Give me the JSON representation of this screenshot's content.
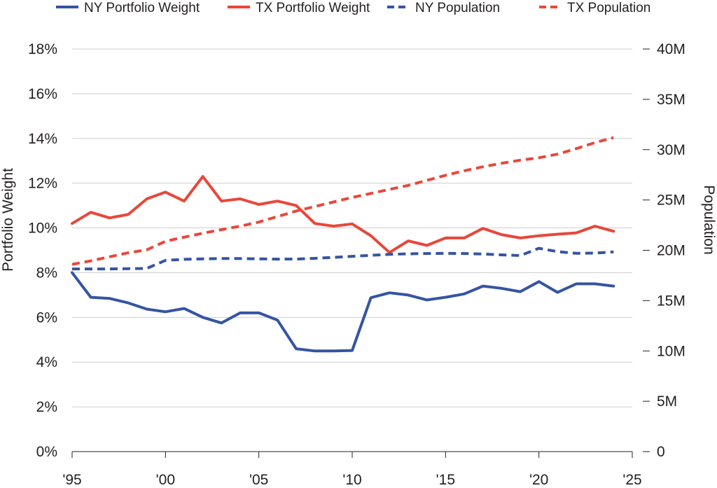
{
  "colors": {
    "ny": "#3554a3",
    "tx": "#e8473a"
  },
  "chart_data": {
    "type": "line",
    "legend_position": "top",
    "grid": true,
    "xlabel": "",
    "ylabel_left": "Portfolio Weight",
    "ylabel_right": "Population",
    "xlim": [
      1995,
      2025
    ],
    "x_ticks": [
      1995,
      2000,
      2005,
      2010,
      2015,
      2020,
      2025
    ],
    "x_tick_labels": [
      "'95",
      "'00",
      "'05",
      "'10",
      "'15",
      "'20",
      "'25"
    ],
    "ylim_left": [
      0,
      18
    ],
    "y_left_ticks": [
      0,
      2,
      4,
      6,
      8,
      10,
      12,
      14,
      16,
      18
    ],
    "y_left_tick_labels": [
      "0%",
      "2%",
      "4%",
      "6%",
      "8%",
      "10%",
      "12%",
      "14%",
      "16%",
      "18%"
    ],
    "ylim_right": [
      0,
      40
    ],
    "y_right_ticks": [
      0,
      5,
      10,
      15,
      20,
      25,
      30,
      35,
      40
    ],
    "y_right_tick_labels": [
      "0",
      "5M",
      "10M",
      "15M",
      "20M",
      "25M",
      "30M",
      "35M",
      "40M"
    ],
    "series": [
      {
        "name": "NY Portfolio Weight",
        "axis": "left",
        "style": "solid",
        "color": "#3554a3",
        "x": [
          1995,
          1996,
          1997,
          1998,
          1999,
          2000,
          2001,
          2002,
          2003,
          2004,
          2005,
          2006,
          2007,
          2008,
          2009,
          2010,
          2011,
          2012,
          2013,
          2014,
          2015,
          2016,
          2017,
          2018,
          2019,
          2020,
          2021,
          2022,
          2023,
          2024
        ],
        "values": [
          8.0,
          6.9,
          6.85,
          6.65,
          6.37,
          6.25,
          6.4,
          6.0,
          5.75,
          6.2,
          6.2,
          5.88,
          4.6,
          4.5,
          4.5,
          4.52,
          6.88,
          7.1,
          7.0,
          6.78,
          6.9,
          7.05,
          7.4,
          7.3,
          7.15,
          7.6,
          7.12,
          7.5,
          7.5,
          7.4
        ]
      },
      {
        "name": "TX Portfolio Weight",
        "axis": "left",
        "style": "solid",
        "color": "#e8473a",
        "x": [
          1995,
          1996,
          1997,
          1998,
          1999,
          2000,
          2001,
          2002,
          2003,
          2004,
          2005,
          2006,
          2007,
          2008,
          2009,
          2010,
          2011,
          2012,
          2013,
          2014,
          2015,
          2016,
          2017,
          2018,
          2019,
          2020,
          2021,
          2022,
          2023,
          2024
        ],
        "values": [
          10.2,
          10.7,
          10.45,
          10.6,
          11.3,
          11.6,
          11.2,
          12.3,
          11.2,
          11.3,
          11.05,
          11.2,
          11.0,
          10.2,
          10.08,
          10.18,
          9.65,
          8.9,
          9.42,
          9.22,
          9.55,
          9.55,
          9.98,
          9.7,
          9.55,
          9.65,
          9.72,
          9.78,
          10.08,
          9.85
        ]
      },
      {
        "name": "NY Population",
        "axis": "right",
        "style": "dashed",
        "color": "#3554a3",
        "x": [
          1995,
          1996,
          1997,
          1998,
          1999,
          2000,
          2001,
          2002,
          2003,
          2004,
          2005,
          2006,
          2007,
          2008,
          2009,
          2010,
          2011,
          2012,
          2013,
          2014,
          2015,
          2016,
          2017,
          2018,
          2019,
          2020,
          2021,
          2022,
          2023,
          2024
        ],
        "values": [
          18.15,
          18.15,
          18.15,
          18.18,
          18.2,
          19.0,
          19.1,
          19.15,
          19.18,
          19.18,
          19.15,
          19.12,
          19.13,
          19.2,
          19.3,
          19.4,
          19.5,
          19.6,
          19.65,
          19.68,
          19.7,
          19.68,
          19.63,
          19.55,
          19.48,
          20.2,
          19.87,
          19.7,
          19.72,
          19.85
        ]
      },
      {
        "name": "TX Population",
        "axis": "right",
        "style": "dashed",
        "color": "#e8473a",
        "x": [
          1995,
          1996,
          1997,
          1998,
          1999,
          2000,
          2001,
          2002,
          2003,
          2004,
          2005,
          2006,
          2007,
          2008,
          2009,
          2010,
          2011,
          2012,
          2013,
          2014,
          2015,
          2016,
          2017,
          2018,
          2019,
          2020,
          2021,
          2022,
          2023,
          2024
        ],
        "values": [
          18.6,
          18.95,
          19.35,
          19.75,
          20.05,
          20.9,
          21.3,
          21.7,
          22.05,
          22.4,
          22.8,
          23.35,
          23.9,
          24.35,
          24.8,
          25.25,
          25.65,
          26.05,
          26.45,
          26.95,
          27.45,
          27.9,
          28.3,
          28.65,
          28.95,
          29.2,
          29.55,
          30.1,
          30.7,
          31.2
        ]
      }
    ]
  }
}
